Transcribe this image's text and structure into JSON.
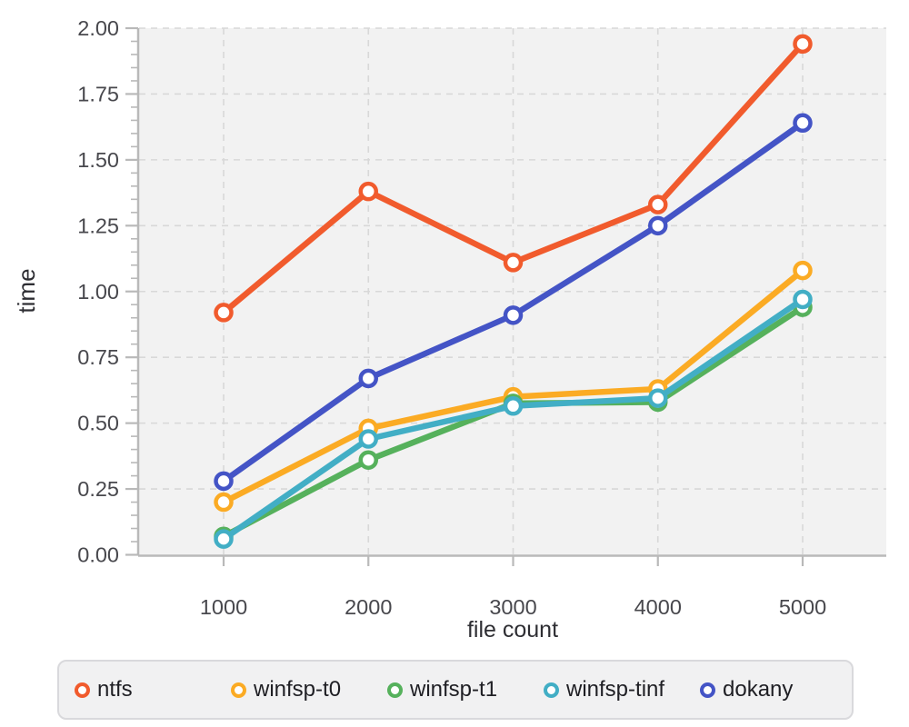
{
  "chart_data": {
    "type": "line",
    "title": "",
    "xlabel": "file count",
    "ylabel": "time",
    "x": [
      1000,
      2000,
      3000,
      4000,
      5000
    ],
    "xtick_labels": [
      "1000",
      "2000",
      "3000",
      "4000",
      "5000"
    ],
    "ylim": [
      0,
      2
    ],
    "ytick_step": 0.25,
    "ytick_minor_step": 0.05,
    "ytick_labels": [
      "0.00",
      "0.25",
      "0.50",
      "0.75",
      "1.00",
      "1.25",
      "1.50",
      "1.75",
      "2.00"
    ],
    "grid": "dashed",
    "legend_position": "bottom",
    "series": [
      {
        "name": "ntfs",
        "color": "#f15b2d",
        "values": [
          0.92,
          1.38,
          1.11,
          1.33,
          1.94
        ]
      },
      {
        "name": "winfsp-t0",
        "color": "#fbab24",
        "values": [
          0.2,
          0.48,
          0.6,
          0.63,
          1.08
        ]
      },
      {
        "name": "winfsp-t1",
        "color": "#56b15c",
        "values": [
          0.07,
          0.36,
          0.575,
          0.58,
          0.94
        ]
      },
      {
        "name": "winfsp-tinf",
        "color": "#42aec5",
        "values": [
          0.06,
          0.44,
          0.565,
          0.595,
          0.97
        ]
      },
      {
        "name": "dokany",
        "color": "#4454c6",
        "values": [
          0.28,
          0.67,
          0.91,
          1.25,
          1.64
        ]
      }
    ]
  },
  "colors": {
    "plot_bg": "#f2f2f2",
    "grid": "#d8d8d8",
    "axis": "#b9b9b9",
    "tick_label": "#48484d",
    "axis_title": "#2e2e33",
    "legend_bg": "#f1f1f2",
    "legend_border": "#d9d9dc",
    "legend_text": "#1f1f24",
    "marker_fill": "#ffffff"
  },
  "legend": {
    "items": [
      "ntfs",
      "winfsp-t0",
      "winfsp-t1",
      "winfsp-tinf",
      "dokany"
    ]
  }
}
